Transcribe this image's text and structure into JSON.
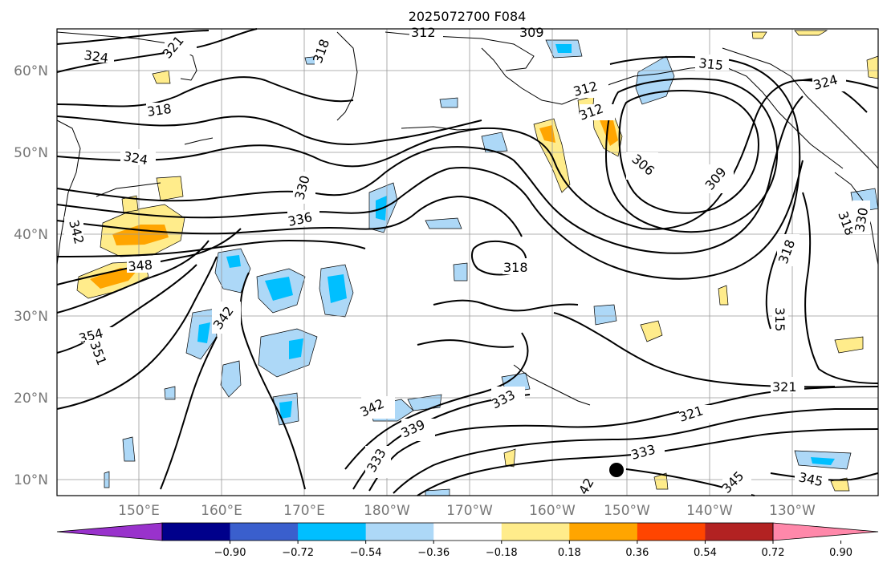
{
  "title": "2025072700 F084",
  "lat_labels": [
    "60°N",
    "50°N",
    "40°N",
    "30°N",
    "20°N",
    "10°N"
  ],
  "lon_labels": [
    "150°E",
    "160°E",
    "170°E",
    "180°W",
    "170°W",
    "160°W",
    "150°W",
    "140°W",
    "130°W"
  ],
  "colorbar": {
    "colors": [
      "#9932cc",
      "#00008b",
      "#3a5fcd",
      "#00bfff",
      "#add8f7",
      "#ffffff",
      "#ffec8b",
      "#ffa500",
      "#ff4500",
      "#b22222",
      "#ff88aa"
    ],
    "tick_labels": [
      "−0.90",
      "−0.72",
      "−0.54",
      "−0.36",
      "−0.18",
      "0.18",
      "0.36",
      "0.54",
      "0.72",
      "0.90"
    ]
  },
  "contour_labels": [
    {
      "text": "324"
    },
    {
      "text": "321"
    },
    {
      "text": "318"
    },
    {
      "text": "312"
    },
    {
      "text": "309"
    },
    {
      "text": "318"
    },
    {
      "text": "318"
    },
    {
      "text": "324"
    },
    {
      "text": "330"
    },
    {
      "text": "336"
    },
    {
      "text": "342"
    },
    {
      "text": "348"
    },
    {
      "text": "354"
    },
    {
      "text": "351"
    },
    {
      "text": "342"
    },
    {
      "text": "315"
    },
    {
      "text": "312"
    },
    {
      "text": "312"
    },
    {
      "text": "306"
    },
    {
      "text": "309"
    },
    {
      "text": "324"
    },
    {
      "text": "318"
    },
    {
      "text": "315"
    },
    {
      "text": "321"
    },
    {
      "text": "321"
    },
    {
      "text": "333"
    },
    {
      "text": "342"
    },
    {
      "text": "339"
    },
    {
      "text": "333"
    },
    {
      "text": "333"
    },
    {
      "text": "345"
    },
    {
      "text": "345"
    },
    {
      "text": "318"
    },
    {
      "text": "330"
    },
    {
      "text": "42"
    }
  ],
  "marker": {
    "lon": "150.5°W",
    "lat": "11°N"
  }
}
